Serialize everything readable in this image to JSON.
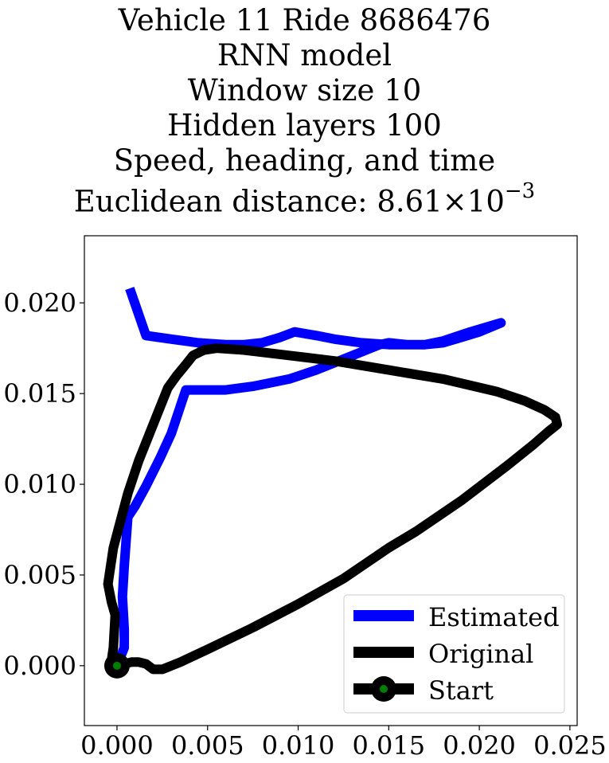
{
  "chart_data": {
    "type": "line",
    "title_lines": [
      "Vehicle 11 Ride 8686476",
      "RNN model",
      "Window size 10",
      "Hidden layers 100",
      "Speed, heading, and time"
    ],
    "title_metric": {
      "prefix": "Euclidean distance: ",
      "mantissa": "8.61",
      "times": "×",
      "base": "10",
      "exponent": "−3"
    },
    "xlim": [
      -0.0018,
      0.0254
    ],
    "ylim": [
      -0.0033,
      0.0237
    ],
    "xticks": [
      {
        "value": 0.0,
        "label": "0.000"
      },
      {
        "value": 0.005,
        "label": "0.005"
      },
      {
        "value": 0.01,
        "label": "0.010"
      },
      {
        "value": 0.015,
        "label": "0.015"
      },
      {
        "value": 0.02,
        "label": "0.020"
      },
      {
        "value": 0.025,
        "label": "0.025"
      }
    ],
    "yticks": [
      {
        "value": 0.0,
        "label": "0.000"
      },
      {
        "value": 0.005,
        "label": "0.005"
      },
      {
        "value": 0.01,
        "label": "0.010"
      },
      {
        "value": 0.015,
        "label": "0.015"
      },
      {
        "value": 0.02,
        "label": "0.020"
      }
    ],
    "grid": false,
    "legend_position": "lower-right",
    "series": [
      {
        "name": "Estimated",
        "color": "#0000ff",
        "points": [
          [
            0.0,
            0.0
          ],
          [
            0.0004,
            0.001
          ],
          [
            0.0004,
            0.002
          ],
          [
            0.0003,
            0.0038
          ],
          [
            0.0004,
            0.0055
          ],
          [
            0.0006,
            0.0082
          ],
          [
            0.001,
            0.0088
          ],
          [
            0.0016,
            0.0099
          ],
          [
            0.0024,
            0.0115
          ],
          [
            0.003,
            0.0128
          ],
          [
            0.0038,
            0.0152
          ],
          [
            0.0045,
            0.0152
          ],
          [
            0.006,
            0.0152
          ],
          [
            0.0075,
            0.0154
          ],
          [
            0.0095,
            0.0158
          ],
          [
            0.011,
            0.0163
          ],
          [
            0.0125,
            0.0169
          ],
          [
            0.0145,
            0.0177
          ],
          [
            0.015,
            0.0178
          ],
          [
            0.016,
            0.0177
          ],
          [
            0.017,
            0.0177
          ],
          [
            0.018,
            0.0178
          ],
          [
            0.019,
            0.0181
          ],
          [
            0.02,
            0.0184
          ],
          [
            0.0212,
            0.0189
          ],
          [
            0.0195,
            0.0184
          ],
          [
            0.018,
            0.0179
          ],
          [
            0.017,
            0.0177
          ],
          [
            0.015,
            0.0177
          ],
          [
            0.0135,
            0.0178
          ],
          [
            0.012,
            0.018
          ],
          [
            0.011,
            0.0182
          ],
          [
            0.0098,
            0.0184
          ],
          [
            0.009,
            0.0181
          ],
          [
            0.008,
            0.0178
          ],
          [
            0.007,
            0.0177
          ],
          [
            0.006,
            0.0177
          ],
          [
            0.0045,
            0.0178
          ],
          [
            0.003,
            0.018
          ],
          [
            0.0016,
            0.0182
          ],
          [
            0.0007,
            0.0208
          ]
        ]
      },
      {
        "name": "Original",
        "color": "#000000",
        "points": [
          [
            0.0,
            0.0
          ],
          [
            0.0008,
            0.0002
          ],
          [
            0.0012,
            0.0002
          ],
          [
            0.0016,
            0.0001
          ],
          [
            0.002,
            -0.0002
          ],
          [
            0.0025,
            -0.0002
          ],
          [
            0.0035,
            0.0002
          ],
          [
            0.005,
            0.0009
          ],
          [
            0.0075,
            0.0021
          ],
          [
            0.01,
            0.0034
          ],
          [
            0.0125,
            0.0048
          ],
          [
            0.015,
            0.0065
          ],
          [
            0.0165,
            0.0074
          ],
          [
            0.019,
            0.0091
          ],
          [
            0.0215,
            0.011
          ],
          [
            0.023,
            0.0122
          ],
          [
            0.0238,
            0.0129
          ],
          [
            0.0243,
            0.0133
          ],
          [
            0.0242,
            0.0137
          ],
          [
            0.0236,
            0.0141
          ],
          [
            0.0225,
            0.0146
          ],
          [
            0.021,
            0.0151
          ],
          [
            0.018,
            0.0158
          ],
          [
            0.015,
            0.0163
          ],
          [
            0.012,
            0.0168
          ],
          [
            0.0095,
            0.0171
          ],
          [
            0.007,
            0.0174
          ],
          [
            0.0055,
            0.0175
          ],
          [
            0.0048,
            0.0174
          ],
          [
            0.0042,
            0.0171
          ],
          [
            0.0038,
            0.0166
          ],
          [
            0.0033,
            0.016
          ],
          [
            0.0028,
            0.0153
          ],
          [
            0.0022,
            0.0138
          ],
          [
            0.0012,
            0.0113
          ],
          [
            0.0006,
            0.0095
          ],
          [
            0.0002,
            0.008
          ],
          [
            -0.0002,
            0.0065
          ],
          [
            -0.0005,
            0.0045
          ],
          [
            -0.0003,
            0.0035
          ],
          [
            -0.0001,
            0.0028
          ],
          [
            -0.0002,
            0.001
          ],
          [
            -0.0003,
            0.0003
          ],
          [
            0.0,
            0.0
          ]
        ]
      }
    ],
    "start": {
      "name": "Start",
      "point": [
        0.0,
        0.0
      ],
      "outer_color": "#000000",
      "inner_color": "#008000"
    }
  }
}
